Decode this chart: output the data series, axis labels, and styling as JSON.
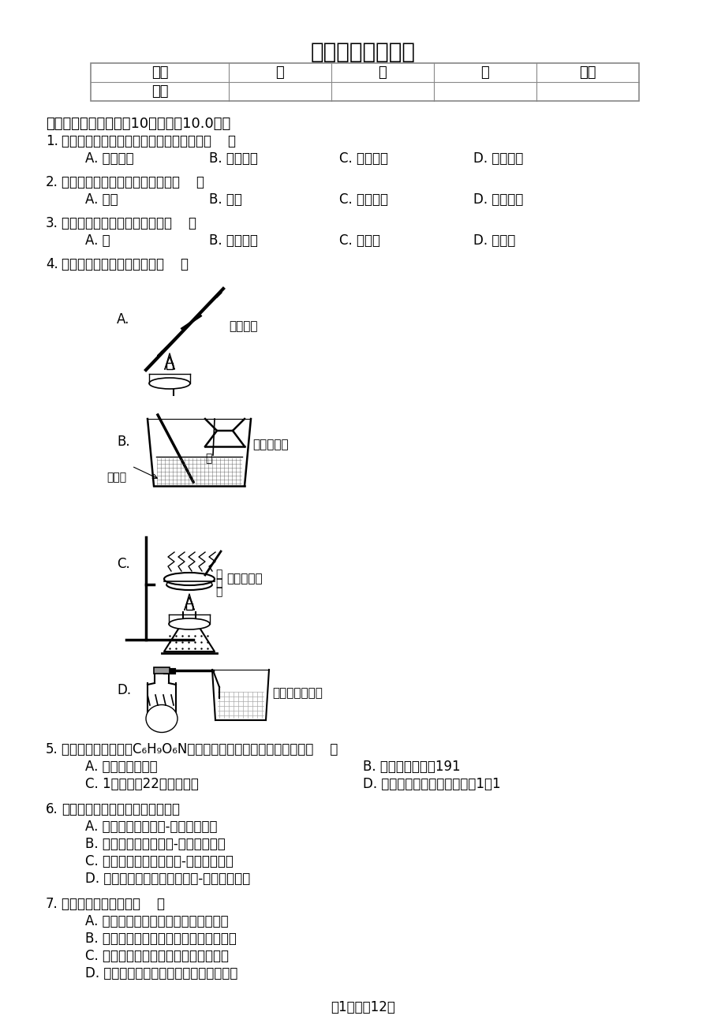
{
  "title": "中考化学一模试卷",
  "title_fontsize": 20,
  "bg_color": "#ffffff",
  "text_color": "#000000",
  "table_header": [
    "题号",
    "一",
    "二",
    "三",
    "总分"
  ],
  "table_row": [
    "得分",
    "",
    "",
    "",
    ""
  ],
  "section1_header": "一、单选题（本大题共10小题，共10.0分）",
  "q1_stem": "下列变化过程中，一定发生化学变化的是（    ）",
  "q1_opts": [
    "A. 水结成冰",
    "B. 铁丝弯曲",
    "C. 镁条燃烧",
    "D. 玻璃破碎"
  ],
  "q2_stem": "下列空气成分中能供给呼吸的是（    ）",
  "q2_opts": [
    "A. 氮气",
    "B. 氧气",
    "C. 二氧化碳",
    "D. 稀有气体"
  ],
  "q3_stem": "下列物质中，由分子构成的是（    ）",
  "q3_opts": [
    "A. 汞",
    "B. 二氧化碳",
    "C. 硫酸铜",
    "D. 金刚石"
  ],
  "q4_stem": "下列实验操作中不正确的是（    ）",
  "q4_A_label": "A.",
  "q4_A_text": "加热液体",
  "q4_B_label": "B.",
  "q4_B_text": "稀释浓硫酸",
  "q4_B_water": "水",
  "q4_B_acid": "浓硫酸",
  "q4_C_label": "C.",
  "q4_C_text": "蒸发食盐水",
  "q4_C_labels": [
    "食",
    "盐",
    "水"
  ],
  "q4_D_label": "D.",
  "q4_D_text": "检查装置气密性",
  "q5_stem": "某种药物的化学式为C₆H₉O₆N，下列有关该药物的说法错误的是（    ）",
  "q5_A": "A. 由四种元素组成",
  "q5_B": "B. 相对分子质量为191",
  "q5_C": "C. 1个分子由22个原子构成",
  "q5_D": "D. 碳、氧两种元素的质量比为1：1",
  "q6_stem": "下列事实的微观解释正确的是（）",
  "q6_opts": [
    "A. 降低温度使水结冰-分子停止运动",
    "B. 空气液化后体积变小-分子体积变小",
    "C. 湿衣服在阳光下干得快-分子间隔变小",
    "D. 水和过氧化氢化学性质不同-分子构成不同"
  ],
  "q7_stem": "下列说法中错误的是（    ）",
  "q7_opts": [
    "A. 可用灼烧的方法区分羊毛和合成纤维",
    "B. 煤、石油、天然气都是不可再生的能源",
    "C. 可利用的淡水资源取之不尽用之不竭",
    "D. 回收利用废旧的金属可以节约金属资源"
  ],
  "footer": "第1页，共12页"
}
